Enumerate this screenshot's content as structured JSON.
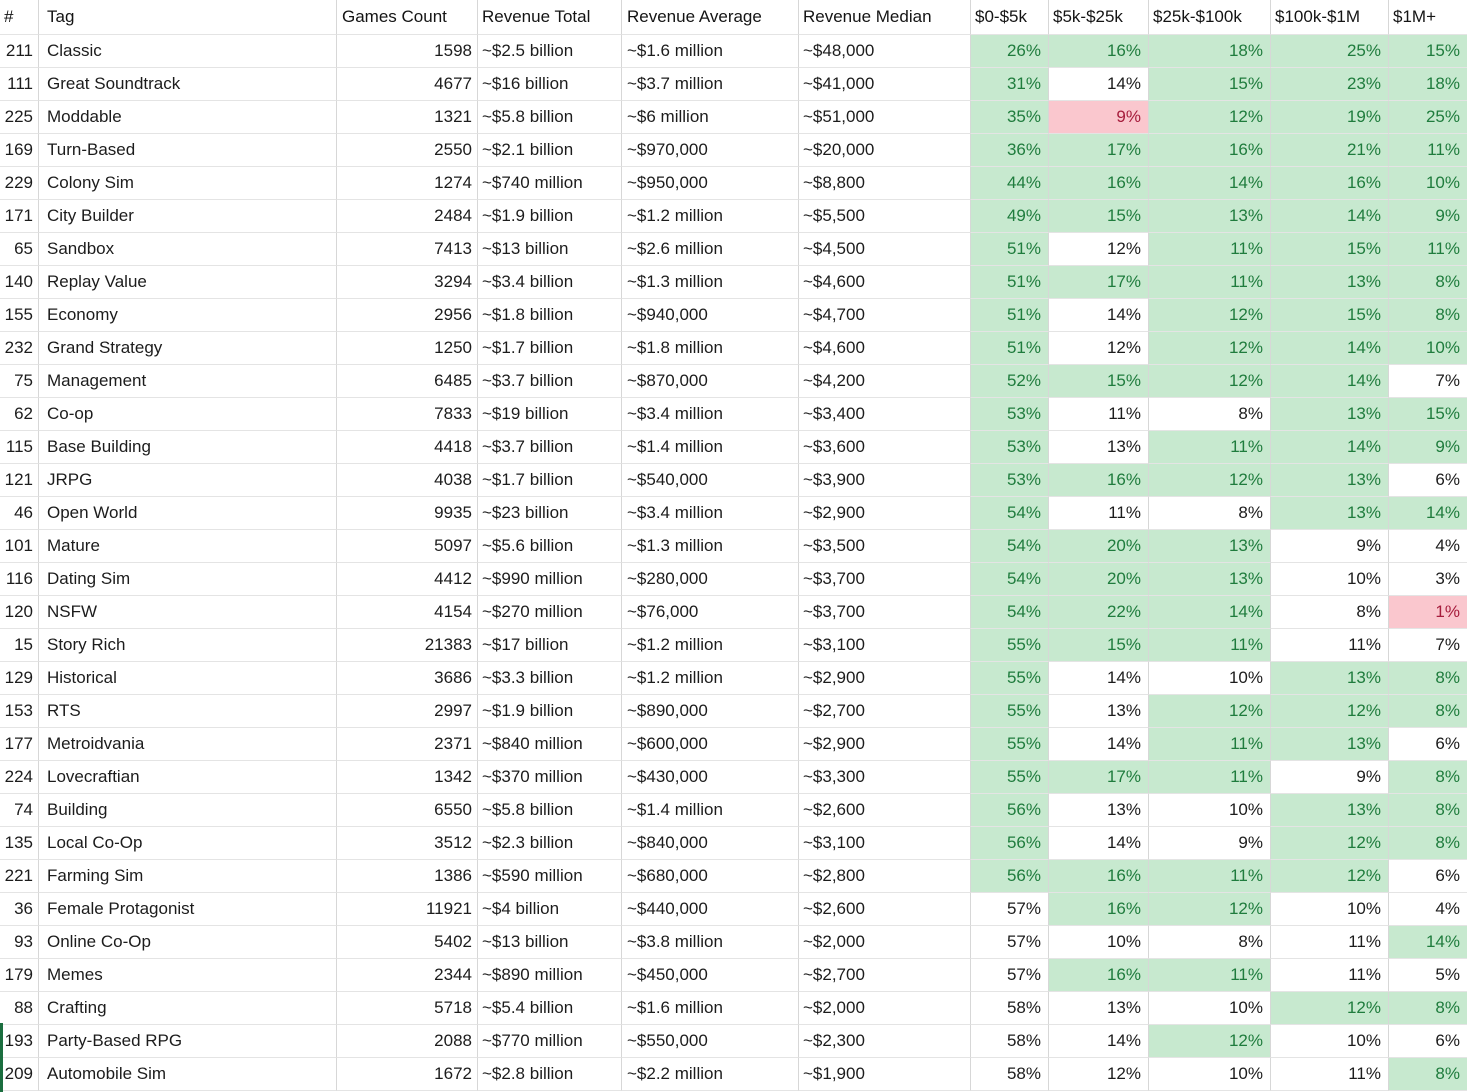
{
  "table": {
    "columns": [
      {
        "key": "rank",
        "label": "#"
      },
      {
        "key": "tag",
        "label": "Tag"
      },
      {
        "key": "games_count",
        "label": "Games Count"
      },
      {
        "key": "revenue_total",
        "label": "Revenue Total"
      },
      {
        "key": "revenue_average",
        "label": "Revenue Average"
      },
      {
        "key": "revenue_median",
        "label": "Revenue Median"
      },
      {
        "key": "bucket_0_5k",
        "label": "$0-$5k"
      },
      {
        "key": "bucket_5k_25k",
        "label": "$5k-$25k"
      },
      {
        "key": "bucket_25k_100k",
        "label": "$25k-$100k"
      },
      {
        "key": "bucket_100k_1m",
        "label": "$100k-$1M"
      },
      {
        "key": "bucket_1m_plus",
        "label": "$1M+"
      }
    ],
    "rows": [
      {
        "rank": "211",
        "tag": "Classic",
        "games_count": "1598",
        "revenue_total": "~$2.5 billion",
        "revenue_average": "~$1.6 million",
        "revenue_median": "~$48,000",
        "buckets": [
          [
            "26%",
            "g"
          ],
          [
            "16%",
            "g"
          ],
          [
            "18%",
            "g"
          ],
          [
            "25%",
            "g"
          ],
          [
            "15%",
            "g"
          ]
        ]
      },
      {
        "rank": "111",
        "tag": "Great Soundtrack",
        "games_count": "4677",
        "revenue_total": "~$16 billion",
        "revenue_average": "~$3.7 million",
        "revenue_median": "~$41,000",
        "buckets": [
          [
            "31%",
            "g"
          ],
          [
            "14%",
            "w"
          ],
          [
            "15%",
            "g"
          ],
          [
            "23%",
            "g"
          ],
          [
            "18%",
            "g"
          ]
        ]
      },
      {
        "rank": "225",
        "tag": "Moddable",
        "games_count": "1321",
        "revenue_total": "~$5.8 billion",
        "revenue_average": "~$6 million",
        "revenue_median": "~$51,000",
        "buckets": [
          [
            "35%",
            "g"
          ],
          [
            "9%",
            "p"
          ],
          [
            "12%",
            "g"
          ],
          [
            "19%",
            "g"
          ],
          [
            "25%",
            "g"
          ]
        ]
      },
      {
        "rank": "169",
        "tag": "Turn-Based",
        "games_count": "2550",
        "revenue_total": "~$2.1 billion",
        "revenue_average": "~$970,000",
        "revenue_median": "~$20,000",
        "buckets": [
          [
            "36%",
            "g"
          ],
          [
            "17%",
            "g"
          ],
          [
            "16%",
            "g"
          ],
          [
            "21%",
            "g"
          ],
          [
            "11%",
            "g"
          ]
        ]
      },
      {
        "rank": "229",
        "tag": "Colony Sim",
        "games_count": "1274",
        "revenue_total": "~$740 million",
        "revenue_average": "~$950,000",
        "revenue_median": "~$8,800",
        "buckets": [
          [
            "44%",
            "g"
          ],
          [
            "16%",
            "g"
          ],
          [
            "14%",
            "g"
          ],
          [
            "16%",
            "g"
          ],
          [
            "10%",
            "g"
          ]
        ]
      },
      {
        "rank": "171",
        "tag": "City Builder",
        "games_count": "2484",
        "revenue_total": "~$1.9 billion",
        "revenue_average": "~$1.2 million",
        "revenue_median": "~$5,500",
        "buckets": [
          [
            "49%",
            "g"
          ],
          [
            "15%",
            "g"
          ],
          [
            "13%",
            "g"
          ],
          [
            "14%",
            "g"
          ],
          [
            "9%",
            "g"
          ]
        ]
      },
      {
        "rank": "65",
        "tag": "Sandbox",
        "games_count": "7413",
        "revenue_total": "~$13 billion",
        "revenue_average": "~$2.6 million",
        "revenue_median": "~$4,500",
        "buckets": [
          [
            "51%",
            "g"
          ],
          [
            "12%",
            "w"
          ],
          [
            "11%",
            "g"
          ],
          [
            "15%",
            "g"
          ],
          [
            "11%",
            "g"
          ]
        ]
      },
      {
        "rank": "140",
        "tag": "Replay Value",
        "games_count": "3294",
        "revenue_total": "~$3.4 billion",
        "revenue_average": "~$1.3 million",
        "revenue_median": "~$4,600",
        "buckets": [
          [
            "51%",
            "g"
          ],
          [
            "17%",
            "g"
          ],
          [
            "11%",
            "g"
          ],
          [
            "13%",
            "g"
          ],
          [
            "8%",
            "g"
          ]
        ]
      },
      {
        "rank": "155",
        "tag": "Economy",
        "games_count": "2956",
        "revenue_total": "~$1.8 billion",
        "revenue_average": "~$940,000",
        "revenue_median": "~$4,700",
        "buckets": [
          [
            "51%",
            "g"
          ],
          [
            "14%",
            "w"
          ],
          [
            "12%",
            "g"
          ],
          [
            "15%",
            "g"
          ],
          [
            "8%",
            "g"
          ]
        ]
      },
      {
        "rank": "232",
        "tag": "Grand Strategy",
        "games_count": "1250",
        "revenue_total": "~$1.7 billion",
        "revenue_average": "~$1.8 million",
        "revenue_median": "~$4,600",
        "buckets": [
          [
            "51%",
            "g"
          ],
          [
            "12%",
            "w"
          ],
          [
            "12%",
            "g"
          ],
          [
            "14%",
            "g"
          ],
          [
            "10%",
            "g"
          ]
        ]
      },
      {
        "rank": "75",
        "tag": "Management",
        "games_count": "6485",
        "revenue_total": "~$3.7 billion",
        "revenue_average": "~$870,000",
        "revenue_median": "~$4,200",
        "buckets": [
          [
            "52%",
            "g"
          ],
          [
            "15%",
            "g"
          ],
          [
            "12%",
            "g"
          ],
          [
            "14%",
            "g"
          ],
          [
            "7%",
            "w"
          ]
        ]
      },
      {
        "rank": "62",
        "tag": "Co-op",
        "games_count": "7833",
        "revenue_total": "~$19 billion",
        "revenue_average": "~$3.4 million",
        "revenue_median": "~$3,400",
        "buckets": [
          [
            "53%",
            "g"
          ],
          [
            "11%",
            "w"
          ],
          [
            "8%",
            "w"
          ],
          [
            "13%",
            "g"
          ],
          [
            "15%",
            "g"
          ]
        ]
      },
      {
        "rank": "115",
        "tag": "Base Building",
        "games_count": "4418",
        "revenue_total": "~$3.7 billion",
        "revenue_average": "~$1.4 million",
        "revenue_median": "~$3,600",
        "buckets": [
          [
            "53%",
            "g"
          ],
          [
            "13%",
            "w"
          ],
          [
            "11%",
            "g"
          ],
          [
            "14%",
            "g"
          ],
          [
            "9%",
            "g"
          ]
        ]
      },
      {
        "rank": "121",
        "tag": "JRPG",
        "games_count": "4038",
        "revenue_total": "~$1.7 billion",
        "revenue_average": "~$540,000",
        "revenue_median": "~$3,900",
        "buckets": [
          [
            "53%",
            "g"
          ],
          [
            "16%",
            "g"
          ],
          [
            "12%",
            "g"
          ],
          [
            "13%",
            "g"
          ],
          [
            "6%",
            "w"
          ]
        ]
      },
      {
        "rank": "46",
        "tag": "Open World",
        "games_count": "9935",
        "revenue_total": "~$23 billion",
        "revenue_average": "~$3.4 million",
        "revenue_median": "~$2,900",
        "buckets": [
          [
            "54%",
            "g"
          ],
          [
            "11%",
            "w"
          ],
          [
            "8%",
            "w"
          ],
          [
            "13%",
            "g"
          ],
          [
            "14%",
            "g"
          ]
        ]
      },
      {
        "rank": "101",
        "tag": "Mature",
        "games_count": "5097",
        "revenue_total": "~$5.6 billion",
        "revenue_average": "~$1.3 million",
        "revenue_median": "~$3,500",
        "buckets": [
          [
            "54%",
            "g"
          ],
          [
            "20%",
            "g"
          ],
          [
            "13%",
            "g"
          ],
          [
            "9%",
            "w"
          ],
          [
            "4%",
            "w"
          ]
        ]
      },
      {
        "rank": "116",
        "tag": "Dating Sim",
        "games_count": "4412",
        "revenue_total": "~$990 million",
        "revenue_average": "~$280,000",
        "revenue_median": "~$3,700",
        "buckets": [
          [
            "54%",
            "g"
          ],
          [
            "20%",
            "g"
          ],
          [
            "13%",
            "g"
          ],
          [
            "10%",
            "w"
          ],
          [
            "3%",
            "w"
          ]
        ]
      },
      {
        "rank": "120",
        "tag": "NSFW",
        "games_count": "4154",
        "revenue_total": "~$270 million",
        "revenue_average": "~$76,000",
        "revenue_median": "~$3,700",
        "buckets": [
          [
            "54%",
            "g"
          ],
          [
            "22%",
            "g"
          ],
          [
            "14%",
            "g"
          ],
          [
            "8%",
            "w"
          ],
          [
            "1%",
            "p"
          ]
        ]
      },
      {
        "rank": "15",
        "tag": "Story Rich",
        "games_count": "21383",
        "revenue_total": "~$17 billion",
        "revenue_average": "~$1.2 million",
        "revenue_median": "~$3,100",
        "buckets": [
          [
            "55%",
            "g"
          ],
          [
            "15%",
            "g"
          ],
          [
            "11%",
            "g"
          ],
          [
            "11%",
            "w"
          ],
          [
            "7%",
            "w"
          ]
        ]
      },
      {
        "rank": "129",
        "tag": "Historical",
        "games_count": "3686",
        "revenue_total": "~$3.3 billion",
        "revenue_average": "~$1.2 million",
        "revenue_median": "~$2,900",
        "buckets": [
          [
            "55%",
            "g"
          ],
          [
            "14%",
            "w"
          ],
          [
            "10%",
            "w"
          ],
          [
            "13%",
            "g"
          ],
          [
            "8%",
            "g"
          ]
        ]
      },
      {
        "rank": "153",
        "tag": "RTS",
        "games_count": "2997",
        "revenue_total": "~$1.9 billion",
        "revenue_average": "~$890,000",
        "revenue_median": "~$2,700",
        "buckets": [
          [
            "55%",
            "g"
          ],
          [
            "13%",
            "w"
          ],
          [
            "12%",
            "g"
          ],
          [
            "12%",
            "g"
          ],
          [
            "8%",
            "g"
          ]
        ]
      },
      {
        "rank": "177",
        "tag": "Metroidvania",
        "games_count": "2371",
        "revenue_total": "~$840 million",
        "revenue_average": "~$600,000",
        "revenue_median": "~$2,900",
        "buckets": [
          [
            "55%",
            "g"
          ],
          [
            "14%",
            "w"
          ],
          [
            "11%",
            "g"
          ],
          [
            "13%",
            "g"
          ],
          [
            "6%",
            "w"
          ]
        ]
      },
      {
        "rank": "224",
        "tag": "Lovecraftian",
        "games_count": "1342",
        "revenue_total": "~$370 million",
        "revenue_average": "~$430,000",
        "revenue_median": "~$3,300",
        "buckets": [
          [
            "55%",
            "g"
          ],
          [
            "17%",
            "g"
          ],
          [
            "11%",
            "g"
          ],
          [
            "9%",
            "w"
          ],
          [
            "8%",
            "g"
          ]
        ]
      },
      {
        "rank": "74",
        "tag": "Building",
        "games_count": "6550",
        "revenue_total": "~$5.8 billion",
        "revenue_average": "~$1.4 million",
        "revenue_median": "~$2,600",
        "buckets": [
          [
            "56%",
            "g"
          ],
          [
            "13%",
            "w"
          ],
          [
            "10%",
            "w"
          ],
          [
            "13%",
            "g"
          ],
          [
            "8%",
            "g"
          ]
        ]
      },
      {
        "rank": "135",
        "tag": "Local Co-Op",
        "games_count": "3512",
        "revenue_total": "~$2.3 billion",
        "revenue_average": "~$840,000",
        "revenue_median": "~$3,100",
        "buckets": [
          [
            "56%",
            "g"
          ],
          [
            "14%",
            "w"
          ],
          [
            "9%",
            "w"
          ],
          [
            "12%",
            "g"
          ],
          [
            "8%",
            "g"
          ]
        ]
      },
      {
        "rank": "221",
        "tag": "Farming Sim",
        "games_count": "1386",
        "revenue_total": "~$590 million",
        "revenue_average": "~$680,000",
        "revenue_median": "~$2,800",
        "buckets": [
          [
            "56%",
            "g"
          ],
          [
            "16%",
            "g"
          ],
          [
            "11%",
            "g"
          ],
          [
            "12%",
            "g"
          ],
          [
            "6%",
            "w"
          ]
        ]
      },
      {
        "rank": "36",
        "tag": "Female Protagonist",
        "games_count": "11921",
        "revenue_total": "~$4 billion",
        "revenue_average": "~$440,000",
        "revenue_median": "~$2,600",
        "buckets": [
          [
            "57%",
            "w"
          ],
          [
            "16%",
            "g"
          ],
          [
            "12%",
            "g"
          ],
          [
            "10%",
            "w"
          ],
          [
            "4%",
            "w"
          ]
        ]
      },
      {
        "rank": "93",
        "tag": "Online Co-Op",
        "games_count": "5402",
        "revenue_total": "~$13 billion",
        "revenue_average": "~$3.8 million",
        "revenue_median": "~$2,000",
        "buckets": [
          [
            "57%",
            "w"
          ],
          [
            "10%",
            "w"
          ],
          [
            "8%",
            "w"
          ],
          [
            "11%",
            "w"
          ],
          [
            "14%",
            "g"
          ]
        ]
      },
      {
        "rank": "179",
        "tag": "Memes",
        "games_count": "2344",
        "revenue_total": "~$890 million",
        "revenue_average": "~$450,000",
        "revenue_median": "~$2,700",
        "buckets": [
          [
            "57%",
            "w"
          ],
          [
            "16%",
            "g"
          ],
          [
            "11%",
            "g"
          ],
          [
            "11%",
            "w"
          ],
          [
            "5%",
            "w"
          ]
        ]
      },
      {
        "rank": "88",
        "tag": "Crafting",
        "games_count": "5718",
        "revenue_total": "~$5.4 billion",
        "revenue_average": "~$1.6 million",
        "revenue_median": "~$2,000",
        "buckets": [
          [
            "58%",
            "w"
          ],
          [
            "13%",
            "w"
          ],
          [
            "10%",
            "w"
          ],
          [
            "12%",
            "g"
          ],
          [
            "8%",
            "g"
          ]
        ]
      },
      {
        "rank": "193",
        "tag": "Party-Based RPG",
        "games_count": "2088",
        "revenue_total": "~$770 million",
        "revenue_average": "~$550,000",
        "revenue_median": "~$2,300",
        "buckets": [
          [
            "58%",
            "w"
          ],
          [
            "14%",
            "w"
          ],
          [
            "12%",
            "g"
          ],
          [
            "10%",
            "w"
          ],
          [
            "6%",
            "w"
          ]
        ]
      },
      {
        "rank": "209",
        "tag": "Automobile Sim",
        "games_count": "1672",
        "revenue_total": "~$2.8 billion",
        "revenue_average": "~$2.2 million",
        "revenue_median": "~$1,900",
        "buckets": [
          [
            "58%",
            "w"
          ],
          [
            "12%",
            "w"
          ],
          [
            "10%",
            "w"
          ],
          [
            "11%",
            "w"
          ],
          [
            "8%",
            "g"
          ]
        ]
      }
    ]
  },
  "colors": {
    "green_bg": "#c7e9cf",
    "green_text": "#1f7c3d",
    "pink_bg": "#fac7ce",
    "pink_text": "#a61c3c",
    "grid_horizontal": "#e4e4e4",
    "grid_vertical": "#d7d7d7",
    "text": "#1c1c1c",
    "accent_strip": "#1b6e3f"
  }
}
